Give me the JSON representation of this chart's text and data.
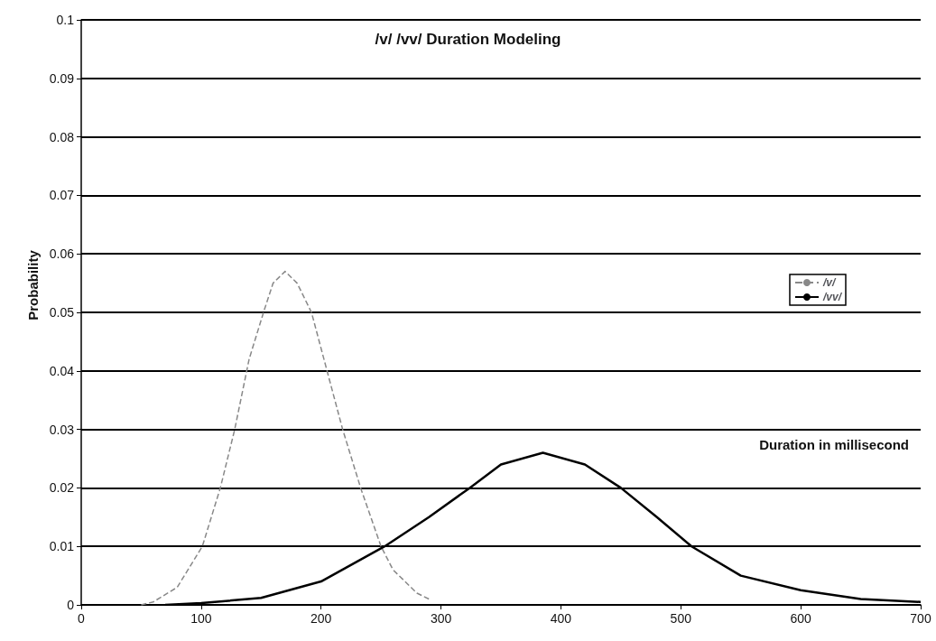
{
  "chart_data": {
    "type": "line",
    "title": "/v/ /vv/ Duration Modeling",
    "xlabel": "Duration in millisecond",
    "ylabel": "Probability",
    "xlim": [
      0,
      700
    ],
    "xticks": [
      0,
      100,
      200,
      300,
      400,
      500,
      600,
      700
    ],
    "ylim": [
      0,
      0.1
    ],
    "yticks": [
      0,
      0.01,
      0.02,
      0.03,
      0.04,
      0.05,
      0.06,
      0.07,
      0.08,
      0.09,
      0.1
    ],
    "grid": "y",
    "legend": "right",
    "marker": "none",
    "series": [
      {
        "name": "/v/",
        "color": "#888888",
        "line_style": "dashed",
        "x": [
          50,
          60,
          80,
          101,
          116,
          128,
          140,
          152,
          160,
          170,
          180,
          192,
          205,
          218,
          233,
          250,
          260,
          270,
          280,
          290
        ],
        "values": [
          0,
          0.0005,
          0.003,
          0.01,
          0.02,
          0.03,
          0.042,
          0.05,
          0.055,
          0.057,
          0.055,
          0.05,
          0.04,
          0.03,
          0.02,
          0.01,
          0.006,
          0.004,
          0.002,
          0.001
        ]
      },
      {
        "name": "/vv/",
        "color": "#000000",
        "line_style": "solid",
        "x": [
          70,
          100,
          150,
          200,
          253,
          290,
          324,
          350,
          385,
          420,
          450,
          480,
          509,
          550,
          600,
          650,
          700
        ],
        "values": [
          0,
          0.0003,
          0.0012,
          0.004,
          0.01,
          0.015,
          0.02,
          0.024,
          0.026,
          0.024,
          0.02,
          0.015,
          0.01,
          0.005,
          0.0025,
          0.001,
          0.0005
        ]
      }
    ]
  }
}
